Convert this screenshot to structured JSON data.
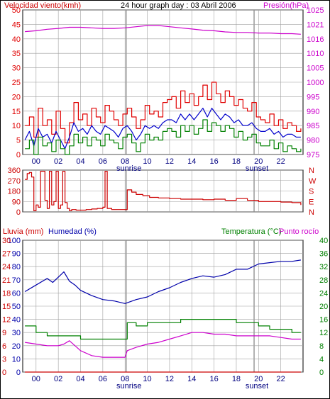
{
  "colors": {
    "wind": "#e00000",
    "wind_avg": "#0000cc",
    "wind_low": "#008000",
    "pressure": "#cc00cc",
    "direction": "#cc0000",
    "rain": "#cc0000",
    "humidity": "#0000aa",
    "temperature": "#008000",
    "dewpoint": "#cc00cc",
    "grid": "#a0a0a0"
  },
  "header": {
    "left": "Velocidad viento(kmh)",
    "center": "24 hour graph day : 03 Abril 2006",
    "right": "Presión(hPa)"
  },
  "x_axis": {
    "ticks": [
      "00",
      "02",
      "04",
      "06",
      "08",
      "10",
      "12",
      "14",
      "16",
      "18",
      "20",
      "22"
    ],
    "sunrise_label": "sunrise",
    "sunset_label": "sunset",
    "sunrise_hour": 8.1,
    "sunset_hour": 19.6
  },
  "panel3_labels": {
    "rain": "Lluvia (mm)",
    "humidity": "Humedad (%)",
    "temperature": "Temperatura (°C)",
    "dewpoint": "Punto rocío"
  },
  "chart_data": [
    {
      "type": "line",
      "title": "24 hour graph day : 03 Abril 2006",
      "xlim": [
        -1.2,
        24.0
      ],
      "left_axis": {
        "label": "Velocidad viento(kmh)",
        "ylim": [
          0,
          50
        ],
        "ticks": [
          "0",
          "5",
          "10",
          "15",
          "20",
          "25",
          "30",
          "35",
          "40",
          "45",
          "50"
        ]
      },
      "right_axis": {
        "label": "Presión(hPa)",
        "ylim": [
          975,
          1025
        ],
        "ticks": [
          "975",
          "980",
          "985",
          "990",
          "995",
          "1000",
          "1005",
          "1010",
          "1016",
          "1021",
          "1025"
        ]
      },
      "series": [
        {
          "key": "gust",
          "axis": "left",
          "color": "wind",
          "step": true,
          "x": [
            -1.0,
            -0.6,
            -0.2,
            0.2,
            0.6,
            1.0,
            1.4,
            1.8,
            2.2,
            2.6,
            3.0,
            3.4,
            3.8,
            4.2,
            4.6,
            5.0,
            5.4,
            5.8,
            6.2,
            6.6,
            7.0,
            7.4,
            7.8,
            8.2,
            8.6,
            9.0,
            9.4,
            9.8,
            10.2,
            10.6,
            11.0,
            11.4,
            11.8,
            12.2,
            12.6,
            13.0,
            13.4,
            13.8,
            14.2,
            14.6,
            15.0,
            15.4,
            15.8,
            16.2,
            16.6,
            17.0,
            17.4,
            17.8,
            18.2,
            18.6,
            19.0,
            19.4,
            19.8,
            20.2,
            20.6,
            21.0,
            21.4,
            21.8,
            22.2,
            22.6,
            23.0,
            23.4,
            23.8
          ],
          "y": [
            10,
            13,
            6,
            16,
            10,
            12,
            7,
            15,
            9,
            4,
            11,
            18,
            12,
            14,
            10,
            16,
            13,
            11,
            17,
            15,
            12,
            10,
            14,
            16,
            13,
            9,
            12,
            17,
            14,
            15,
            13,
            18,
            19,
            20,
            16,
            22,
            18,
            21,
            17,
            20,
            24,
            19,
            25,
            21,
            18,
            22,
            20,
            17,
            19,
            16,
            15,
            18,
            13,
            12,
            11,
            14,
            10,
            12,
            9,
            11,
            10,
            8,
            9
          ]
        },
        {
          "key": "average",
          "axis": "left",
          "color": "wind_avg",
          "step": false,
          "x": [
            -1.0,
            -0.6,
            -0.2,
            0.2,
            0.6,
            1.0,
            1.4,
            1.8,
            2.2,
            2.6,
            3.0,
            3.4,
            3.8,
            4.2,
            4.6,
            5.0,
            5.4,
            5.8,
            6.2,
            6.6,
            7.0,
            7.4,
            7.8,
            8.2,
            8.6,
            9.0,
            9.4,
            9.8,
            10.2,
            10.6,
            11.0,
            11.4,
            11.8,
            12.2,
            12.6,
            13.0,
            13.4,
            13.8,
            14.2,
            14.6,
            15.0,
            15.4,
            15.8,
            16.2,
            16.6,
            17.0,
            17.4,
            17.8,
            18.2,
            18.6,
            19.0,
            19.4,
            19.8,
            20.2,
            20.6,
            21.0,
            21.4,
            21.8,
            22.2,
            22.6,
            23.0,
            23.4,
            23.8
          ],
          "y": [
            5,
            8,
            3,
            9,
            6,
            7,
            4,
            8,
            5,
            2,
            6,
            11,
            8,
            9,
            7,
            10,
            8,
            7,
            10,
            9,
            8,
            6,
            9,
            10,
            8,
            5,
            7,
            10,
            9,
            10,
            9,
            11,
            12,
            12,
            11,
            14,
            12,
            14,
            12,
            14,
            16,
            13,
            16,
            14,
            12,
            14,
            13,
            11,
            12,
            10,
            10,
            11,
            9,
            8,
            8,
            9,
            7,
            8,
            6,
            7,
            7,
            6,
            6
          ]
        },
        {
          "key": "low",
          "axis": "left",
          "color": "wind_low",
          "step": true,
          "x": [
            -1.0,
            -0.6,
            -0.2,
            0.2,
            0.6,
            1.0,
            1.4,
            1.8,
            2.2,
            2.6,
            3.0,
            3.4,
            3.8,
            4.2,
            4.6,
            5.0,
            5.4,
            5.8,
            6.2,
            6.6,
            7.0,
            7.4,
            7.8,
            8.2,
            8.6,
            9.0,
            9.4,
            9.8,
            10.2,
            10.6,
            11.0,
            11.4,
            11.8,
            12.2,
            12.6,
            13.0,
            13.4,
            13.8,
            14.2,
            14.6,
            15.0,
            15.4,
            15.8,
            16.2,
            16.6,
            17.0,
            17.4,
            17.8,
            18.2,
            18.6,
            19.0,
            19.4,
            19.8,
            20.2,
            20.6,
            21.0,
            21.4,
            21.8,
            22.2,
            22.6,
            23.0,
            23.4,
            23.8
          ],
          "y": [
            2,
            5,
            0,
            6,
            3,
            4,
            1,
            5,
            2,
            0,
            3,
            7,
            4,
            6,
            3,
            6,
            5,
            3,
            7,
            5,
            4,
            2,
            6,
            7,
            4,
            1,
            4,
            7,
            5,
            6,
            5,
            8,
            9,
            8,
            6,
            10,
            8,
            10,
            7,
            9,
            12,
            8,
            11,
            10,
            8,
            10,
            9,
            6,
            8,
            5,
            6,
            7,
            4,
            3,
            3,
            5,
            2,
            4,
            1,
            3,
            2,
            1,
            2
          ]
        },
        {
          "key": "pressure",
          "axis": "right",
          "color": "pressure",
          "step": false,
          "x": [
            -1.0,
            0.0,
            1.0,
            2.0,
            3.0,
            4.0,
            5.0,
            6.0,
            7.0,
            8.0,
            9.0,
            10.0,
            11.0,
            12.0,
            13.0,
            14.0,
            15.0,
            16.0,
            17.0,
            18.0,
            19.0,
            20.0,
            21.0,
            22.0,
            23.0,
            23.8
          ],
          "y": [
            1017.5,
            1017.8,
            1018.3,
            1018.6,
            1019.0,
            1019.0,
            1018.8,
            1018.6,
            1018.6,
            1018.8,
            1019.2,
            1019.6,
            1019.6,
            1019.2,
            1018.8,
            1018.4,
            1018.0,
            1017.8,
            1017.4,
            1017.2,
            1017.2,
            1017.0,
            1017.0,
            1016.8,
            1016.8,
            1016.6
          ]
        }
      ]
    },
    {
      "type": "line",
      "left_axis": {
        "ylim": [
          0,
          360
        ],
        "ticks": [
          "0",
          "90",
          "180",
          "270",
          "360"
        ]
      },
      "right_axis": {
        "ticks": [
          "N",
          "E",
          "S",
          "W",
          "N"
        ]
      },
      "series": [
        {
          "key": "direction",
          "axis": "left",
          "color": "direction",
          "step": true,
          "x": [
            -1.0,
            -0.8,
            -0.6,
            -0.4,
            -0.2,
            0.0,
            0.2,
            0.4,
            0.6,
            0.8,
            1.0,
            1.2,
            1.4,
            1.6,
            1.8,
            2.0,
            2.2,
            2.4,
            2.6,
            2.8,
            3.0,
            3.2,
            3.6,
            4.0,
            4.5,
            5.0,
            5.5,
            6.0,
            6.2,
            6.4,
            6.8,
            7.4,
            8.0,
            8.2,
            8.6,
            9.0,
            9.6,
            10.2,
            11.0,
            12.0,
            13.0,
            14.0,
            15.0,
            16.0,
            17.0,
            18.0,
            19.0,
            20.0,
            21.0,
            22.0,
            23.0,
            23.8
          ],
          "y": [
            280,
            330,
            340,
            300,
            10,
            60,
            40,
            350,
            350,
            100,
            30,
            350,
            60,
            90,
            350,
            30,
            60,
            350,
            80,
            30,
            10,
            20,
            15,
            15,
            20,
            25,
            30,
            40,
            350,
            30,
            20,
            20,
            20,
            190,
            170,
            150,
            140,
            125,
            120,
            115,
            110,
            110,
            105,
            110,
            100,
            115,
            100,
            90,
            90,
            85,
            80,
            60
          ]
        }
      ]
    },
    {
      "type": "line",
      "left_axis": {
        "label": "Lluvia (mm)",
        "ylim": [
          0,
          30
        ],
        "ticks": [
          "0",
          "3",
          "6",
          "9",
          "12",
          "15",
          "18",
          "21",
          "24",
          "27",
          "30"
        ]
      },
      "inner_left_axis": {
        "label": "Humedad (%)",
        "ylim": [
          0,
          100
        ],
        "ticks": [
          "0",
          "10",
          "20",
          "30",
          "40",
          "50",
          "60",
          "70",
          "80",
          "90",
          "100"
        ]
      },
      "right_axis": {
        "label": "Temperatura (°C)",
        "ylim": [
          0,
          40
        ],
        "ticks": [
          "0",
          "4",
          "8",
          "12",
          "16",
          "20",
          "24",
          "28",
          "32",
          "36",
          "40"
        ]
      },
      "series": [
        {
          "key": "rain",
          "axis": "left",
          "color": "rain",
          "step": false,
          "x": [
            -1.0,
            23.8
          ],
          "y": [
            0,
            0
          ]
        },
        {
          "key": "humidity",
          "axis": "inner",
          "color": "humidity",
          "step": false,
          "x": [
            -1.0,
            0.0,
            1.0,
            1.5,
            2.0,
            2.5,
            3.0,
            3.5,
            4.0,
            5.0,
            6.0,
            7.0,
            8.0,
            9.0,
            10.0,
            11.0,
            12.0,
            13.0,
            14.0,
            15.0,
            16.0,
            17.0,
            18.0,
            19.0,
            20.0,
            21.0,
            22.0,
            23.0,
            23.8
          ],
          "y": [
            61,
            66,
            71,
            68,
            72,
            76,
            69,
            66,
            62,
            58,
            55,
            54,
            52,
            55,
            57,
            61,
            64,
            68,
            71,
            73,
            72,
            74,
            78,
            78,
            82,
            83,
            84,
            84,
            85
          ]
        },
        {
          "key": "temperature",
          "axis": "right",
          "color": "temperature",
          "step": true,
          "x": [
            -1.0,
            0.0,
            1.0,
            2.0,
            3.0,
            4.0,
            5.0,
            6.0,
            7.0,
            8.0,
            8.2,
            9.0,
            10.0,
            11.0,
            12.0,
            13.0,
            14.0,
            15.0,
            16.0,
            17.0,
            18.0,
            19.0,
            20.0,
            21.0,
            22.0,
            23.0,
            23.8
          ],
          "y": [
            14,
            12,
            11,
            11,
            11,
            10,
            10,
            10,
            10,
            10,
            15,
            14,
            15,
            15,
            15,
            16,
            16,
            16,
            16,
            16,
            15,
            15,
            14,
            13,
            13,
            12,
            12
          ]
        },
        {
          "key": "dewpoint",
          "axis": "right",
          "color": "dewpoint",
          "step": false,
          "x": [
            -1.0,
            0.0,
            1.0,
            2.0,
            2.5,
            3.0,
            3.5,
            4.0,
            5.0,
            6.0,
            7.0,
            8.0,
            8.2,
            9.0,
            10.0,
            11.0,
            12.0,
            13.0,
            14.0,
            15.0,
            16.0,
            17.0,
            18.0,
            19.0,
            20.0,
            21.0,
            22.0,
            23.0,
            23.8
          ],
          "y": [
            9,
            8.5,
            8,
            8,
            8.5,
            9.5,
            8,
            6.5,
            5,
            4.5,
            4.5,
            4.5,
            6.5,
            7.5,
            8.5,
            9,
            10,
            11,
            12,
            12,
            11.5,
            11.5,
            11,
            11,
            11,
            11,
            10.5,
            10,
            10
          ]
        }
      ]
    }
  ]
}
